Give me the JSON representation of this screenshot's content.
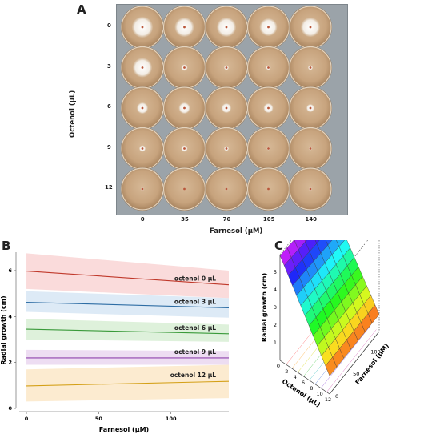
{
  "panels": {
    "a": {
      "letter": "A",
      "y_title": "Octenol (µL)",
      "x_title": "Farnesol (µM)",
      "row_labels": [
        "0",
        "3",
        "6",
        "9",
        "12"
      ],
      "col_labels": [
        "0",
        "35",
        "70",
        "105",
        "140"
      ]
    },
    "b": {
      "letter": "B"
    },
    "c": {
      "letter": "C"
    }
  },
  "chart_data": [
    {
      "type": "line",
      "xlabel": "Farnesol (µM)",
      "ylabel": "Radial growth (cm)",
      "xlim": [
        -5,
        140
      ],
      "ylim": [
        0,
        6.8
      ],
      "x_ticks": [
        0,
        50,
        100
      ],
      "y_ticks": [
        0,
        2,
        4,
        6
      ],
      "series": [
        {
          "name": "octenol 0 µL",
          "color": "#c0392b",
          "band": "#f9d5d5",
          "x": [
            0,
            140
          ],
          "y": [
            5.98,
            5.38
          ],
          "lo": [
            5.2,
            4.8
          ],
          "hi": [
            6.75,
            6.0
          ]
        },
        {
          "name": "octenol 3 µL",
          "color": "#2e6da4",
          "band": "#d7e6f5",
          "x": [
            0,
            140
          ],
          "y": [
            4.62,
            4.38
          ],
          "lo": [
            4.2,
            3.95
          ],
          "hi": [
            5.1,
            4.8
          ]
        },
        {
          "name": "octenol 6 µL",
          "color": "#3a9a3a",
          "band": "#d8efd5",
          "x": [
            0,
            140
          ],
          "y": [
            3.45,
            3.25
          ],
          "lo": [
            3.0,
            2.9
          ],
          "hi": [
            3.9,
            3.65
          ]
        },
        {
          "name": "octenol 9 µL",
          "color": "#8e44ad",
          "band": "#ead7f0",
          "x": [
            0,
            140
          ],
          "y": [
            2.2,
            2.2
          ],
          "lo": [
            1.9,
            1.9
          ],
          "hi": [
            2.55,
            2.5
          ]
        },
        {
          "name": "octenol 12 µL",
          "color": "#d4a017",
          "band": "#fbe8c8",
          "x": [
            0,
            140
          ],
          "y": [
            0.98,
            1.18
          ],
          "lo": [
            0.3,
            0.45
          ],
          "hi": [
            1.7,
            1.9
          ]
        }
      ]
    },
    {
      "type": "surface",
      "xlabel": "Octenol (µL)",
      "ylabel": "Farnesol (µM)",
      "zlabel": "Radial growth (cm)",
      "x_ticks": [
        0,
        2,
        4,
        6,
        8,
        10,
        12
      ],
      "y_ticks": [
        0,
        50,
        100
      ],
      "z_ticks": [
        1,
        2,
        3,
        4,
        5
      ]
    }
  ]
}
